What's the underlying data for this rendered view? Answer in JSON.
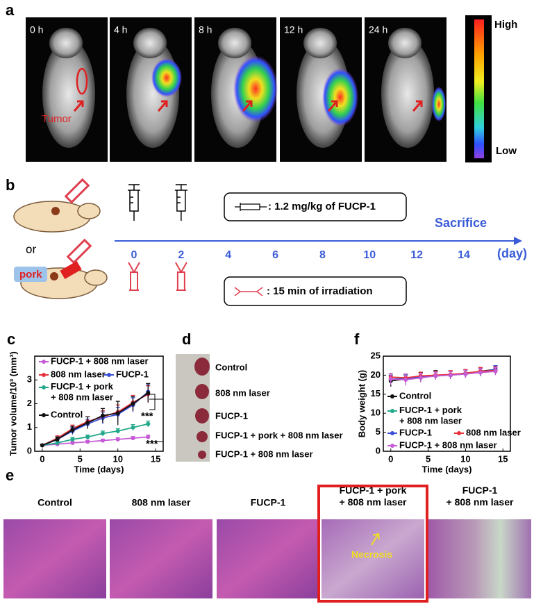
{
  "panel_a": {
    "label": "a",
    "times": [
      "0 h",
      "4 h",
      "8 h",
      "12 h",
      "24 h"
    ],
    "tumor": "Tumor",
    "high": "High",
    "low": "Low"
  },
  "panel_b": {
    "label": "b",
    "or": "or",
    "pork": "pork",
    "days": [
      0,
      2,
      4,
      6,
      8,
      10,
      12,
      14
    ],
    "unit": "(day)",
    "sacrifice": "Sacrifice",
    "injection": ": 1.2 mg/kg of FUCP-1",
    "irradiation": ": 15 min of irradiation"
  },
  "panel_d": {
    "label": "d",
    "groups": [
      "Control",
      "808 nm laser",
      "FUCP-1",
      "FUCP-1 + pork + 808 nm laser",
      "FUCP-1 + 808 nm laser"
    ]
  },
  "panel_e": {
    "label": "e",
    "groups": [
      "Control",
      "808 nm laser",
      "FUCP-1",
      "FUCP-1 + pork\n+ 808 nm laser",
      "FUCP-1\n+ 808 nm laser"
    ],
    "necrosis": "Necrosis"
  },
  "chart_data": [
    {
      "type": "line",
      "label": "c",
      "x_label": "Time (days)",
      "y_label": "Tumor volume/10³ (mm³)",
      "x": [
        0,
        2,
        4,
        6,
        8,
        10,
        12,
        14
      ],
      "xlim": [
        -1,
        16
      ],
      "xticks": [
        0,
        5,
        10,
        15
      ],
      "ylim": [
        0,
        4
      ],
      "yticks": [
        0,
        1,
        2,
        3
      ],
      "annotations": [
        "***",
        "***"
      ],
      "series": [
        {
          "name": "FUCP-1 + 808 nm laser",
          "color": "#c65bd6",
          "values": [
            0.25,
            0.3,
            0.35,
            0.4,
            0.45,
            0.5,
            0.55,
            0.6
          ],
          "errors": [
            0.05,
            0.05,
            0.06,
            0.06,
            0.06,
            0.07,
            0.07,
            0.08
          ]
        },
        {
          "name": "808 nm laser",
          "color": "#e8303a",
          "values": [
            0.25,
            0.55,
            0.95,
            1.25,
            1.45,
            1.65,
            2.05,
            2.4
          ],
          "errors": [
            0.05,
            0.1,
            0.15,
            0.2,
            0.25,
            0.3,
            0.3,
            0.35
          ]
        },
        {
          "name": "FUCP-1",
          "color": "#3b4fd8",
          "values": [
            0.25,
            0.5,
            0.85,
            1.15,
            1.4,
            1.55,
            1.95,
            2.5
          ],
          "errors": [
            0.05,
            0.1,
            0.15,
            0.2,
            0.25,
            0.3,
            0.3,
            0.3
          ]
        },
        {
          "name": "FUCP-1 + pork\n+ 808 nm laser",
          "color": "#22a88a",
          "values": [
            0.25,
            0.35,
            0.5,
            0.6,
            0.75,
            0.85,
            1.0,
            1.15
          ],
          "errors": [
            0.05,
            0.06,
            0.08,
            0.08,
            0.1,
            0.1,
            0.12,
            0.12
          ]
        },
        {
          "name": "Control",
          "color": "#111111",
          "values": [
            0.25,
            0.5,
            0.9,
            1.2,
            1.5,
            1.6,
            2.0,
            2.45
          ],
          "errors": [
            0.05,
            0.1,
            0.15,
            0.25,
            0.3,
            0.5,
            0.3,
            0.4
          ]
        }
      ]
    },
    {
      "type": "line",
      "label": "f",
      "x_label": "Time (days)",
      "y_label": "Body weight (g)",
      "x": [
        0,
        2,
        4,
        6,
        8,
        10,
        12,
        14
      ],
      "xlim": [
        -1,
        16
      ],
      "xticks": [
        0,
        5,
        10,
        15
      ],
      "ylim": [
        0,
        25
      ],
      "yticks": [
        0,
        5,
        10,
        15,
        20,
        25
      ],
      "series": [
        {
          "name": "Control",
          "color": "#111111",
          "values": [
            18.5,
            19,
            19.5,
            20,
            20,
            20.5,
            21,
            21.5
          ],
          "errors": [
            1.5,
            1.2,
            1.2,
            1.2,
            1,
            1,
            1,
            1
          ]
        },
        {
          "name": "FUCP-1 + pork\n+ 808 nm laser",
          "color": "#22a88a",
          "values": [
            19,
            19.2,
            19.5,
            19.8,
            20,
            20.3,
            20.8,
            21.2
          ],
          "errors": [
            1,
            1,
            1,
            1,
            1,
            1,
            1,
            1
          ]
        },
        {
          "name": "FUCP-1",
          "color": "#3b4fd8",
          "values": [
            19,
            19,
            19.5,
            20,
            20,
            20.5,
            20.8,
            21.5
          ],
          "errors": [
            1,
            1,
            1,
            1,
            1,
            1,
            1,
            1
          ]
        },
        {
          "name": "808 nm laser",
          "color": "#e8303a",
          "values": [
            19.5,
            19.3,
            19.8,
            20,
            20.2,
            20.5,
            21,
            21.2
          ],
          "errors": [
            1,
            1,
            1,
            1,
            1,
            1,
            1,
            1
          ]
        },
        {
          "name": "FUCP-1 + 808 nm laser",
          "color": "#c65bd6",
          "values": [
            19,
            18.8,
            19.3,
            19.8,
            20,
            20.3,
            20.7,
            21
          ],
          "errors": [
            1.5,
            1.5,
            1.2,
            1,
            1,
            1,
            1,
            1
          ]
        }
      ]
    }
  ]
}
